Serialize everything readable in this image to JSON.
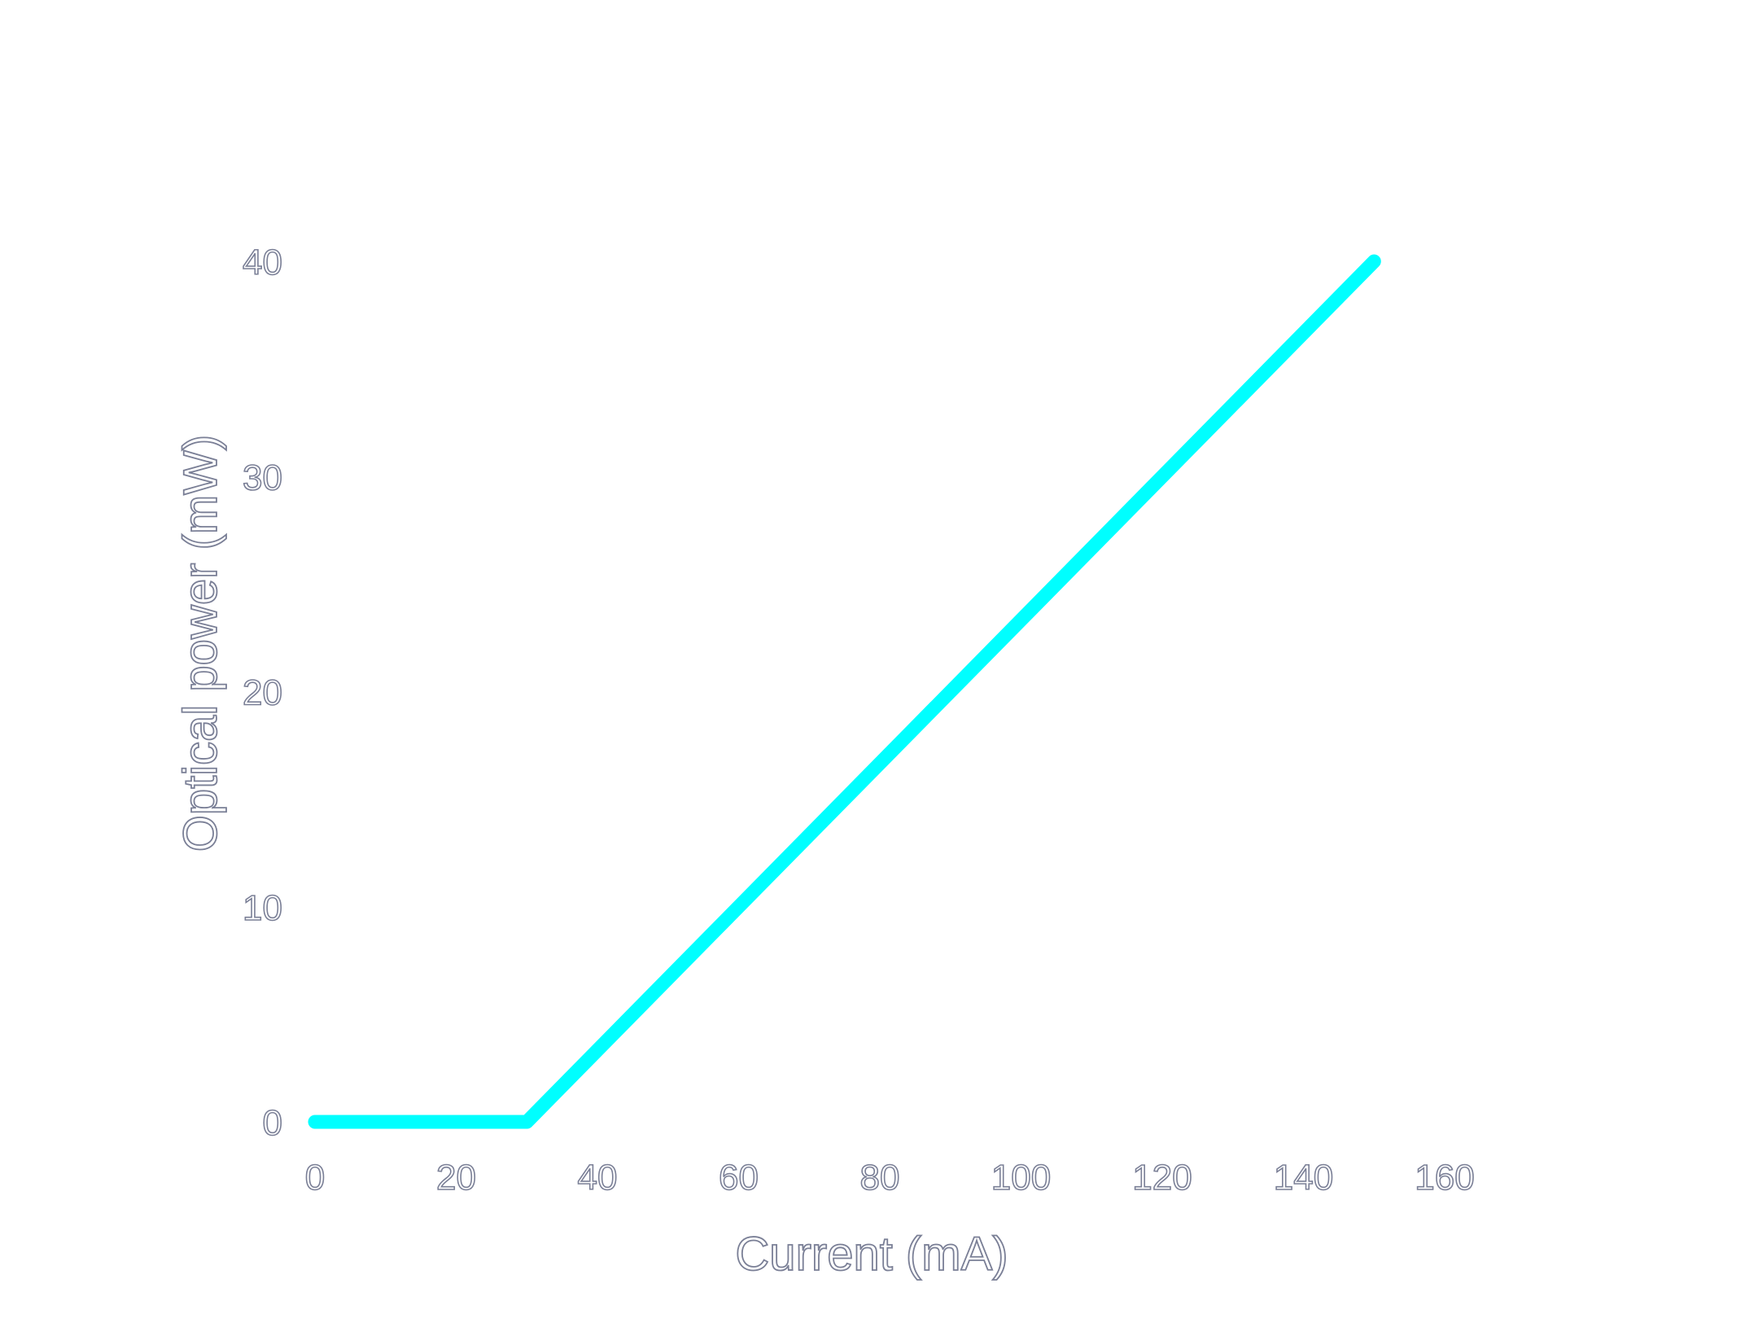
{
  "chart_data": {
    "type": "line",
    "title": "",
    "xlabel": "Current (mA)",
    "ylabel": "Optical power (mW)",
    "xlim": [
      0,
      160
    ],
    "ylim": [
      0,
      40
    ],
    "x_ticks": [
      "0",
      "20",
      "40",
      "60",
      "80",
      "100",
      "120",
      "140",
      "160"
    ],
    "y_ticks": [
      "0",
      "10",
      "20",
      "30",
      "40"
    ],
    "grid": false,
    "legend": "none",
    "series": [
      {
        "color": "#00ffff",
        "x": [
          0,
          28,
          30,
          150
        ],
        "y": [
          0,
          0,
          0,
          40
        ]
      }
    ]
  }
}
